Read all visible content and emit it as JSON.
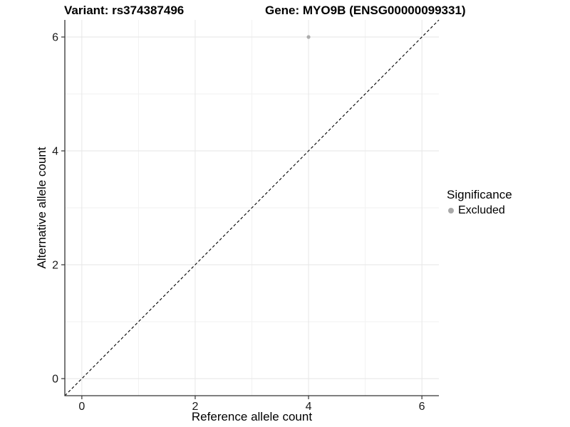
{
  "chart_data": {
    "type": "scatter",
    "titles": {
      "left": "Variant: rs374387496",
      "right": "Gene: MYO9B (ENSG00000099331)"
    },
    "xlabel": "Reference allele count",
    "ylabel": "Alternative allele count",
    "xlim": [
      -0.3,
      6.3
    ],
    "ylim": [
      -0.3,
      6.3
    ],
    "x_ticks": [
      0,
      2,
      4,
      6
    ],
    "y_ticks": [
      0,
      2,
      4,
      6
    ],
    "x_minor_gridlines": [
      1,
      3,
      5
    ],
    "y_minor_gridlines": [
      1,
      3,
      5
    ],
    "grid": "on",
    "points": [
      {
        "x": 4,
        "y": 6,
        "series": "Excluded"
      }
    ],
    "identity_line": {
      "style": "dashed",
      "slope": 1,
      "intercept": 0,
      "color": "#000000"
    },
    "legend": {
      "title": "Significance",
      "position": "right",
      "items": [
        {
          "label": "Excluded",
          "color": "#a9a9a9"
        }
      ]
    },
    "colors": {
      "grid_major": "#e6e6e6",
      "grid_minor": "#f2f2f2",
      "axis_line": "#333333",
      "tick_text": "#1a1a1a",
      "point": "#b1b1b1",
      "background": "#ffffff"
    }
  }
}
